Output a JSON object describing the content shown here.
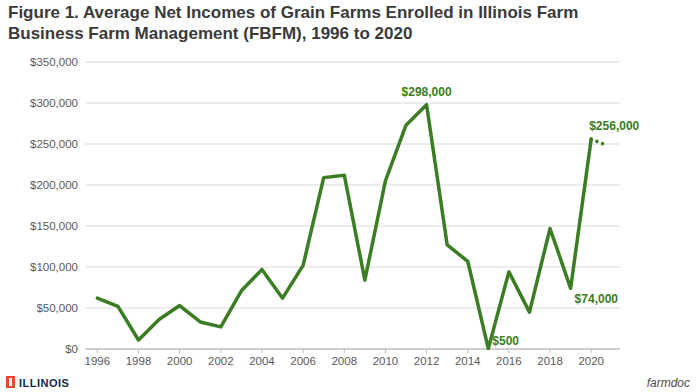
{
  "chart_data": {
    "type": "line",
    "title": "Figure 1. Average Net Incomes of Grain Farms Enrolled in Illinois Farm Business Farm Management (FBFM), 1996 to 2020",
    "x": [
      1996,
      1997,
      1998,
      1999,
      2000,
      2001,
      2002,
      2003,
      2004,
      2005,
      2006,
      2007,
      2008,
      2009,
      2010,
      2011,
      2012,
      2013,
      2014,
      2015,
      2016,
      2017,
      2018,
      2019,
      2020,
      2020.7
    ],
    "series": [
      {
        "color": "#3a7d22",
        "line_style": "solid",
        "values": [
          62000,
          52000,
          11000,
          36000,
          53000,
          33000,
          27000,
          71000,
          97000,
          62000,
          102000,
          209000,
          212000,
          84000,
          205000,
          273000,
          298000,
          127000,
          107000,
          500,
          94000,
          45000,
          147000,
          74000,
          256000,
          null
        ]
      },
      {
        "color": "#3a7d22",
        "line_style": "dotted",
        "values": [
          null,
          null,
          null,
          null,
          null,
          null,
          null,
          null,
          null,
          null,
          null,
          null,
          null,
          null,
          null,
          null,
          null,
          null,
          null,
          null,
          null,
          null,
          null,
          null,
          256000,
          249000
        ]
      }
    ],
    "xlim": [
      1995.4,
      2021.4
    ],
    "xticks": [
      1996,
      1998,
      2000,
      2002,
      2004,
      2006,
      2008,
      2010,
      2012,
      2014,
      2016,
      2018,
      2020
    ],
    "ylim": [
      0,
      350000
    ],
    "yticks": [
      {
        "value": 0,
        "label": "$0"
      },
      {
        "value": 50000,
        "label": "$50,000"
      },
      {
        "value": 100000,
        "label": "$100,000"
      },
      {
        "value": 150000,
        "label": "$150,000"
      },
      {
        "value": 200000,
        "label": "$200,000"
      },
      {
        "value": 250000,
        "label": "$250,000"
      },
      {
        "value": 300000,
        "label": "$300,000"
      },
      {
        "value": 350000,
        "label": "$350,000"
      }
    ],
    "grid": true,
    "annotations": [
      {
        "text": "$298,000",
        "x": 2012
      },
      {
        "text": "$500",
        "x": 2015
      },
      {
        "text": "$74,000",
        "x": 2019
      },
      {
        "text": "$256,000",
        "x": 2020
      }
    ],
    "logo_text": "ILLINOIS",
    "brand": "farmdoc"
  }
}
